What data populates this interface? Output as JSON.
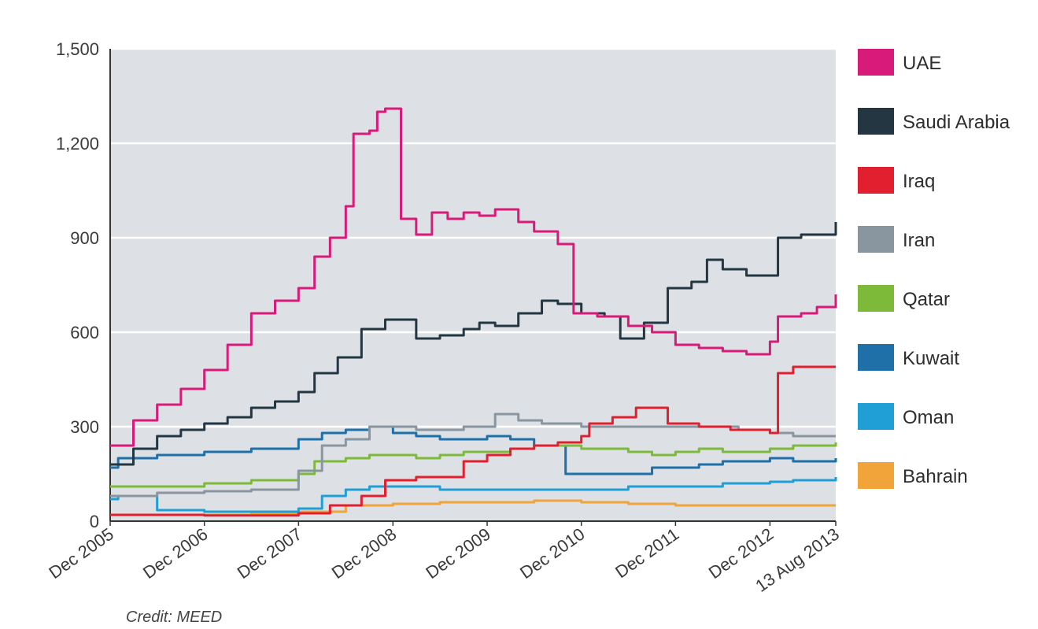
{
  "chart_data": {
    "type": "line",
    "title": "",
    "xlabel": "",
    "ylabel": "",
    "ylim": [
      0,
      1500
    ],
    "yticks": [
      0,
      300,
      600,
      900,
      1200,
      1500
    ],
    "ytick_labels": [
      "0",
      "300",
      "600",
      "900",
      "1,200",
      "1,500"
    ],
    "xlim": [
      "2005-12",
      "2013-08-13"
    ],
    "xticks": [
      {
        "date": "2005-12",
        "label": "Dec 2005"
      },
      {
        "date": "2006-12",
        "label": "Dec 2006"
      },
      {
        "date": "2007-12",
        "label": "Dec 2007"
      },
      {
        "date": "2008-12",
        "label": "Dec 2008"
      },
      {
        "date": "2009-12",
        "label": "Dec 2009"
      },
      {
        "date": "2010-12",
        "label": "Dec 2010"
      },
      {
        "date": "2011-12",
        "label": "Dec 2011"
      },
      {
        "date": "2012-12",
        "label": "Dec 2012"
      },
      {
        "date": "2013-08-13",
        "label": "13 Aug 2013"
      }
    ],
    "grid": true,
    "background": "#dde1e6",
    "legend_position": "right",
    "series": [
      {
        "name": "UAE",
        "color": "#d81b7a",
        "points": [
          [
            "2005-12",
            240
          ],
          [
            "2006-03",
            320
          ],
          [
            "2006-06",
            370
          ],
          [
            "2006-09",
            420
          ],
          [
            "2006-12",
            480
          ],
          [
            "2007-03",
            560
          ],
          [
            "2007-06",
            660
          ],
          [
            "2007-09",
            700
          ],
          [
            "2007-12",
            740
          ],
          [
            "2008-02",
            840
          ],
          [
            "2008-04",
            900
          ],
          [
            "2008-06",
            1000
          ],
          [
            "2008-07",
            1230
          ],
          [
            "2008-09",
            1240
          ],
          [
            "2008-10",
            1300
          ],
          [
            "2008-11",
            1310
          ],
          [
            "2009-01",
            960
          ],
          [
            "2009-03",
            910
          ],
          [
            "2009-05",
            980
          ],
          [
            "2009-07",
            960
          ],
          [
            "2009-09",
            980
          ],
          [
            "2009-11",
            970
          ],
          [
            "2010-01",
            990
          ],
          [
            "2010-04",
            950
          ],
          [
            "2010-06",
            920
          ],
          [
            "2010-09",
            880
          ],
          [
            "2010-11",
            660
          ],
          [
            "2011-02",
            650
          ],
          [
            "2011-06",
            620
          ],
          [
            "2011-09",
            600
          ],
          [
            "2011-12",
            560
          ],
          [
            "2012-03",
            550
          ],
          [
            "2012-06",
            540
          ],
          [
            "2012-09",
            530
          ],
          [
            "2012-12",
            570
          ],
          [
            "2013-01",
            650
          ],
          [
            "2013-04",
            660
          ],
          [
            "2013-06",
            680
          ],
          [
            "2013-08-13",
            720
          ]
        ]
      },
      {
        "name": "Saudi Arabia",
        "color": "#243642",
        "points": [
          [
            "2005-12",
            180
          ],
          [
            "2006-03",
            230
          ],
          [
            "2006-06",
            270
          ],
          [
            "2006-09",
            290
          ],
          [
            "2006-12",
            310
          ],
          [
            "2007-03",
            330
          ],
          [
            "2007-06",
            360
          ],
          [
            "2007-09",
            380
          ],
          [
            "2007-12",
            410
          ],
          [
            "2008-02",
            470
          ],
          [
            "2008-05",
            520
          ],
          [
            "2008-08",
            610
          ],
          [
            "2008-11",
            640
          ],
          [
            "2009-01",
            640
          ],
          [
            "2009-03",
            580
          ],
          [
            "2009-06",
            590
          ],
          [
            "2009-09",
            610
          ],
          [
            "2009-11",
            630
          ],
          [
            "2010-01",
            620
          ],
          [
            "2010-04",
            660
          ],
          [
            "2010-07",
            700
          ],
          [
            "2010-09",
            690
          ],
          [
            "2010-12",
            660
          ],
          [
            "2011-03",
            650
          ],
          [
            "2011-05",
            580
          ],
          [
            "2011-08",
            630
          ],
          [
            "2011-11",
            740
          ],
          [
            "2012-02",
            760
          ],
          [
            "2012-04",
            830
          ],
          [
            "2012-06",
            800
          ],
          [
            "2012-09",
            780
          ],
          [
            "2012-12",
            780
          ],
          [
            "2013-01",
            900
          ],
          [
            "2013-04",
            910
          ],
          [
            "2013-08-13",
            950
          ]
        ]
      },
      {
        "name": "Iraq",
        "color": "#e11f2e",
        "points": [
          [
            "2005-12",
            20
          ],
          [
            "2006-06",
            20
          ],
          [
            "2006-12",
            18
          ],
          [
            "2007-06",
            18
          ],
          [
            "2007-12",
            25
          ],
          [
            "2008-04",
            50
          ],
          [
            "2008-08",
            80
          ],
          [
            "2008-11",
            130
          ],
          [
            "2009-03",
            140
          ],
          [
            "2009-07",
            140
          ],
          [
            "2009-09",
            190
          ],
          [
            "2009-12",
            210
          ],
          [
            "2010-03",
            230
          ],
          [
            "2010-06",
            240
          ],
          [
            "2010-09",
            250
          ],
          [
            "2010-12",
            270
          ],
          [
            "2011-01",
            310
          ],
          [
            "2011-04",
            330
          ],
          [
            "2011-07",
            360
          ],
          [
            "2011-09",
            360
          ],
          [
            "2011-11",
            310
          ],
          [
            "2012-03",
            300
          ],
          [
            "2012-07",
            290
          ],
          [
            "2012-12",
            280
          ],
          [
            "2013-01",
            470
          ],
          [
            "2013-03",
            490
          ],
          [
            "2013-08-13",
            490
          ]
        ]
      },
      {
        "name": "Iran",
        "color": "#8a969f",
        "points": [
          [
            "2005-12",
            80
          ],
          [
            "2006-06",
            90
          ],
          [
            "2006-12",
            95
          ],
          [
            "2007-06",
            100
          ],
          [
            "2007-12",
            160
          ],
          [
            "2008-03",
            240
          ],
          [
            "2008-06",
            260
          ],
          [
            "2008-09",
            300
          ],
          [
            "2008-12",
            300
          ],
          [
            "2009-03",
            290
          ],
          [
            "2009-06",
            290
          ],
          [
            "2009-09",
            300
          ],
          [
            "2010-01",
            340
          ],
          [
            "2010-04",
            320
          ],
          [
            "2010-07",
            310
          ],
          [
            "2010-12",
            300
          ],
          [
            "2011-04",
            300
          ],
          [
            "2011-08",
            300
          ],
          [
            "2011-12",
            300
          ],
          [
            "2012-04",
            300
          ],
          [
            "2012-08",
            290
          ],
          [
            "2012-12",
            280
          ],
          [
            "2013-03",
            270
          ],
          [
            "2013-08-13",
            270
          ]
        ]
      },
      {
        "name": "Qatar",
        "color": "#7dba3a",
        "points": [
          [
            "2005-12",
            110
          ],
          [
            "2006-06",
            110
          ],
          [
            "2006-12",
            120
          ],
          [
            "2007-06",
            130
          ],
          [
            "2007-12",
            150
          ],
          [
            "2008-02",
            190
          ],
          [
            "2008-06",
            200
          ],
          [
            "2008-09",
            210
          ],
          [
            "2008-12",
            210
          ],
          [
            "2009-03",
            200
          ],
          [
            "2009-06",
            210
          ],
          [
            "2009-09",
            220
          ],
          [
            "2009-12",
            220
          ],
          [
            "2010-03",
            230
          ],
          [
            "2010-06",
            240
          ],
          [
            "2010-09",
            240
          ],
          [
            "2010-12",
            230
          ],
          [
            "2011-03",
            230
          ],
          [
            "2011-06",
            220
          ],
          [
            "2011-09",
            210
          ],
          [
            "2011-12",
            220
          ],
          [
            "2012-03",
            230
          ],
          [
            "2012-06",
            220
          ],
          [
            "2012-09",
            220
          ],
          [
            "2012-12",
            230
          ],
          [
            "2013-03",
            240
          ],
          [
            "2013-08-13",
            250
          ]
        ]
      },
      {
        "name": "Kuwait",
        "color": "#1f6fa8",
        "points": [
          [
            "2005-12",
            170
          ],
          [
            "2006-01",
            200
          ],
          [
            "2006-06",
            210
          ],
          [
            "2006-12",
            220
          ],
          [
            "2007-06",
            230
          ],
          [
            "2007-12",
            260
          ],
          [
            "2008-03",
            280
          ],
          [
            "2008-06",
            290
          ],
          [
            "2008-09",
            300
          ],
          [
            "2008-12",
            280
          ],
          [
            "2009-03",
            270
          ],
          [
            "2009-06",
            260
          ],
          [
            "2009-09",
            260
          ],
          [
            "2009-12",
            270
          ],
          [
            "2010-03",
            260
          ],
          [
            "2010-06",
            240
          ],
          [
            "2010-09",
            240
          ],
          [
            "2010-10",
            150
          ],
          [
            "2011-01",
            150
          ],
          [
            "2011-06",
            150
          ],
          [
            "2011-09",
            170
          ],
          [
            "2011-12",
            170
          ],
          [
            "2012-03",
            180
          ],
          [
            "2012-06",
            190
          ],
          [
            "2012-09",
            190
          ],
          [
            "2012-12",
            200
          ],
          [
            "2013-03",
            190
          ],
          [
            "2013-08-13",
            200
          ]
        ]
      },
      {
        "name": "Oman",
        "color": "#1f9fd6",
        "points": [
          [
            "2005-12",
            70
          ],
          [
            "2006-01",
            80
          ],
          [
            "2006-06",
            35
          ],
          [
            "2006-12",
            30
          ],
          [
            "2007-06",
            30
          ],
          [
            "2007-12",
            40
          ],
          [
            "2008-03",
            80
          ],
          [
            "2008-06",
            100
          ],
          [
            "2008-09",
            110
          ],
          [
            "2008-12",
            110
          ],
          [
            "2009-06",
            100
          ],
          [
            "2009-12",
            100
          ],
          [
            "2010-06",
            100
          ],
          [
            "2010-12",
            100
          ],
          [
            "2011-06",
            110
          ],
          [
            "2011-12",
            110
          ],
          [
            "2012-06",
            120
          ],
          [
            "2012-12",
            125
          ],
          [
            "2013-03",
            130
          ],
          [
            "2013-08-13",
            140
          ]
        ]
      },
      {
        "name": "Bahrain",
        "color": "#f0a43a",
        "points": [
          [
            "2005-12",
            20
          ],
          [
            "2006-06",
            20
          ],
          [
            "2006-12",
            20
          ],
          [
            "2007-06",
            25
          ],
          [
            "2007-12",
            30
          ],
          [
            "2008-06",
            50
          ],
          [
            "2008-12",
            55
          ],
          [
            "2009-06",
            60
          ],
          [
            "2009-12",
            60
          ],
          [
            "2010-06",
            65
          ],
          [
            "2010-12",
            60
          ],
          [
            "2011-06",
            55
          ],
          [
            "2011-12",
            50
          ],
          [
            "2012-06",
            50
          ],
          [
            "2012-12",
            50
          ],
          [
            "2013-08-13",
            50
          ]
        ]
      }
    ]
  },
  "footer": {
    "source_text": "Credit: MEED"
  }
}
